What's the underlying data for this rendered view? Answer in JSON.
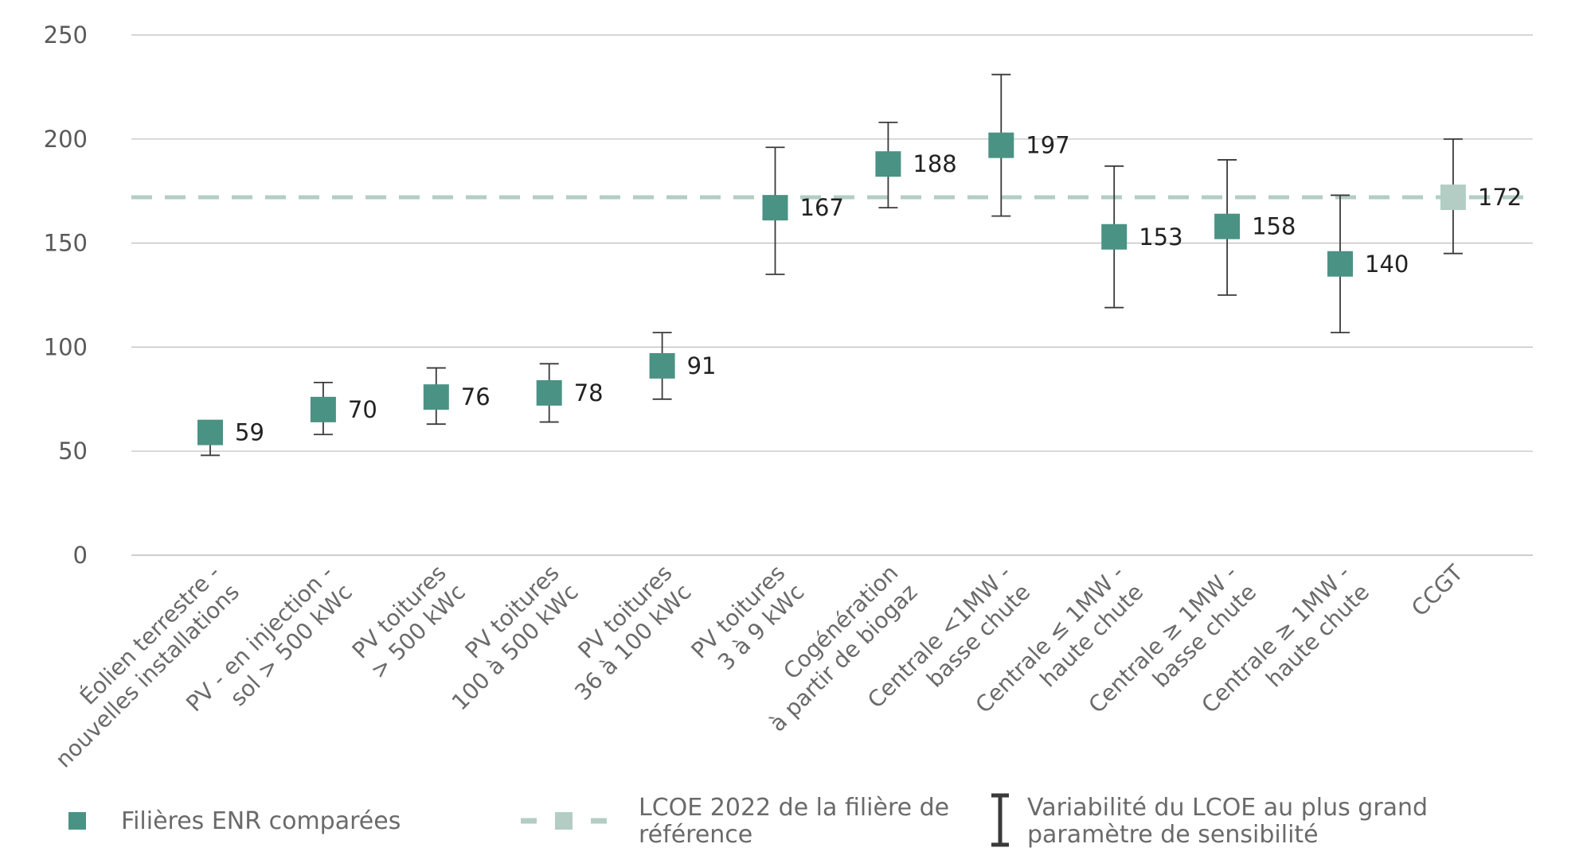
{
  "chart_data": {
    "type": "scatter",
    "categories": [
      [
        "Éolien terrestre -",
        "nouvelles installations"
      ],
      [
        "PV - en injection -",
        "sol > 500 kWc"
      ],
      [
        "PV toitures",
        "> 500 kWc"
      ],
      [
        "PV toitures",
        "100 à 500 kWc"
      ],
      [
        "PV toitures",
        "36 à 100 kWc"
      ],
      [
        "PV toitures",
        "3 à 9 kWc"
      ],
      [
        "Cogénération",
        "à partir de biogaz"
      ],
      [
        "Centrale <1MW -",
        "basse chute"
      ],
      [
        "Centrale ≤ 1MW -",
        "haute chute"
      ],
      [
        "Centrale ≥ 1MW -",
        "basse chute"
      ],
      [
        "Centrale ≥ 1MW -",
        "haute chute"
      ],
      [
        "CCGT"
      ]
    ],
    "values": [
      59,
      70,
      76,
      78,
      91,
      167,
      188,
      197,
      153,
      158,
      140,
      172
    ],
    "value_labels": [
      "59",
      "70",
      "76",
      "78",
      "91",
      "167",
      "188",
      "197",
      "153",
      "158",
      "140",
      "172"
    ],
    "error_low": [
      48,
      58,
      63,
      64,
      75,
      135,
      167,
      163,
      119,
      125,
      107,
      145
    ],
    "error_high": [
      64,
      83,
      90,
      92,
      107,
      196,
      208,
      231,
      187,
      190,
      173,
      200
    ],
    "reference_index": 11,
    "reference_line": 172,
    "y_ticks": [
      "0",
      "50",
      "100",
      "150",
      "200",
      "250"
    ],
    "ylim": [
      0,
      250
    ],
    "grid": true,
    "legend_position": "bottom",
    "legend": {
      "renewables": "Filières ENR comparées",
      "reference": [
        "LCOE 2022 de la filière de",
        "référence"
      ],
      "variability": [
        "Variabilité du LCOE au plus grand",
        "paramètre de sensibilité"
      ]
    }
  },
  "colors": {
    "renewables": "#4a9284",
    "reference": "#b3cdc4",
    "error_bar": "#3a3a3a",
    "grid": "#bdbdbd"
  }
}
